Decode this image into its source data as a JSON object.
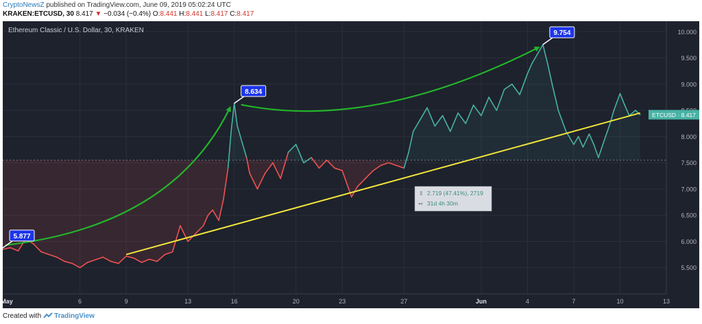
{
  "header": {
    "publisher": "CryptoNewsZ",
    "published_text": "published on TradingView.com, June 09, 2019 05:02:24 UTC",
    "symbol_interval": "KRAKEN:ETCUSD, 30",
    "last": "8.417",
    "change_arrow": "▼",
    "change": "−0.034 (−0.4%)",
    "open_label": "O:",
    "open": "8.441",
    "high_label": "H:",
    "high": "8.441",
    "low_label": "L:",
    "low": "8.417",
    "close_label": "C:",
    "close": "8.417"
  },
  "footer": {
    "created_with": "Created with",
    "brand": "TradingView"
  },
  "colors": {
    "background": "#1e222d",
    "up_line": "#48b2a4",
    "down_line": "#ef5350",
    "trendline": "#f2e53c",
    "arrows": "#23b52a",
    "callout": "#1d35e8",
    "grid": "#2b2f3a"
  },
  "chart_data": {
    "type": "line",
    "title": "Ethereum Classic / U.S. Dollar, 30, KRAKEN",
    "xlabel": "",
    "ylabel": "",
    "ylim": [
      5.0,
      10.2
    ],
    "grid": true,
    "x_ticks": [
      "May",
      "6",
      "9",
      "13",
      "16",
      "20",
      "23",
      "27",
      "Jun",
      "4",
      "7",
      "10",
      "13"
    ],
    "y_ticks": [
      "5.500",
      "6.000",
      "6.500",
      "7.000",
      "7.500",
      "8.000",
      "8.500",
      "9.000",
      "9.500",
      "10.000"
    ],
    "baseline_price": 7.55,
    "x_day_range": [
      1,
      44
    ],
    "series": [
      {
        "name": "ETCUSD",
        "x": [
          1,
          1.5,
          2,
          2.5,
          3,
          3.5,
          4,
          4.5,
          5,
          5.5,
          6,
          6.5,
          7,
          7.5,
          8,
          8.5,
          9,
          9.5,
          10,
          10.5,
          11,
          11.5,
          12,
          12.5,
          13,
          13.5,
          14,
          14.3,
          14.6,
          15,
          15.3,
          15.6,
          15.8,
          16,
          16.2,
          16.5,
          16.8,
          17,
          17.5,
          18,
          18.5,
          19,
          19.5,
          20,
          20.5,
          21,
          21.5,
          22,
          22.5,
          23,
          23.3,
          23.6,
          24,
          24.5,
          25,
          25.5,
          26,
          26.5,
          27,
          27.3,
          27.6,
          28,
          28.5,
          29,
          29.5,
          30,
          30.5,
          31,
          31.5,
          32,
          32.5,
          33,
          33.5,
          34,
          34.5,
          35,
          35.3,
          35.6,
          36,
          36.3,
          36.6,
          37,
          37.5,
          38,
          38.3,
          38.6,
          39,
          39.3,
          39.6,
          40,
          40.3,
          40.6,
          41,
          41.3,
          41.6,
          42,
          42.3
        ],
        "values": [
          5.85,
          5.88,
          5.82,
          6.05,
          5.95,
          5.8,
          5.75,
          5.7,
          5.62,
          5.58,
          5.5,
          5.6,
          5.65,
          5.7,
          5.62,
          5.58,
          5.72,
          5.68,
          5.6,
          5.66,
          5.62,
          5.75,
          5.8,
          6.3,
          6.0,
          6.15,
          6.3,
          6.5,
          6.6,
          6.4,
          6.8,
          7.4,
          8.1,
          8.634,
          8.2,
          7.9,
          7.6,
          7.3,
          7.0,
          7.3,
          7.5,
          7.2,
          7.7,
          7.85,
          7.5,
          7.6,
          7.4,
          7.55,
          7.4,
          7.35,
          7.1,
          6.85,
          7.05,
          7.2,
          7.35,
          7.45,
          7.5,
          7.45,
          7.4,
          7.7,
          8.1,
          8.3,
          8.55,
          8.2,
          8.4,
          8.1,
          8.45,
          8.25,
          8.6,
          8.4,
          8.75,
          8.5,
          8.9,
          9.0,
          8.8,
          9.2,
          9.4,
          9.55,
          9.754,
          9.4,
          9.0,
          8.5,
          8.1,
          7.85,
          8.0,
          7.8,
          8.05,
          7.85,
          7.6,
          7.95,
          8.2,
          8.5,
          8.82,
          8.6,
          8.4,
          8.5,
          8.417
        ]
      }
    ],
    "trendline": {
      "x": [
        9,
        42.3
      ],
      "y": [
        5.75,
        8.45
      ]
    },
    "annotations": [
      {
        "label": "5.877",
        "x": 1,
        "y": 5.877
      },
      {
        "label": "8.634",
        "x": 16,
        "y": 8.634
      },
      {
        "label": "9.754",
        "x": 36,
        "y": 9.754
      }
    ],
    "measure_box": {
      "line1": "2.719 (47.41%), 2719",
      "line2": "31d 4h 30m"
    },
    "last_price_label": {
      "symbol": "ETCUSD",
      "value": "8.417"
    }
  }
}
